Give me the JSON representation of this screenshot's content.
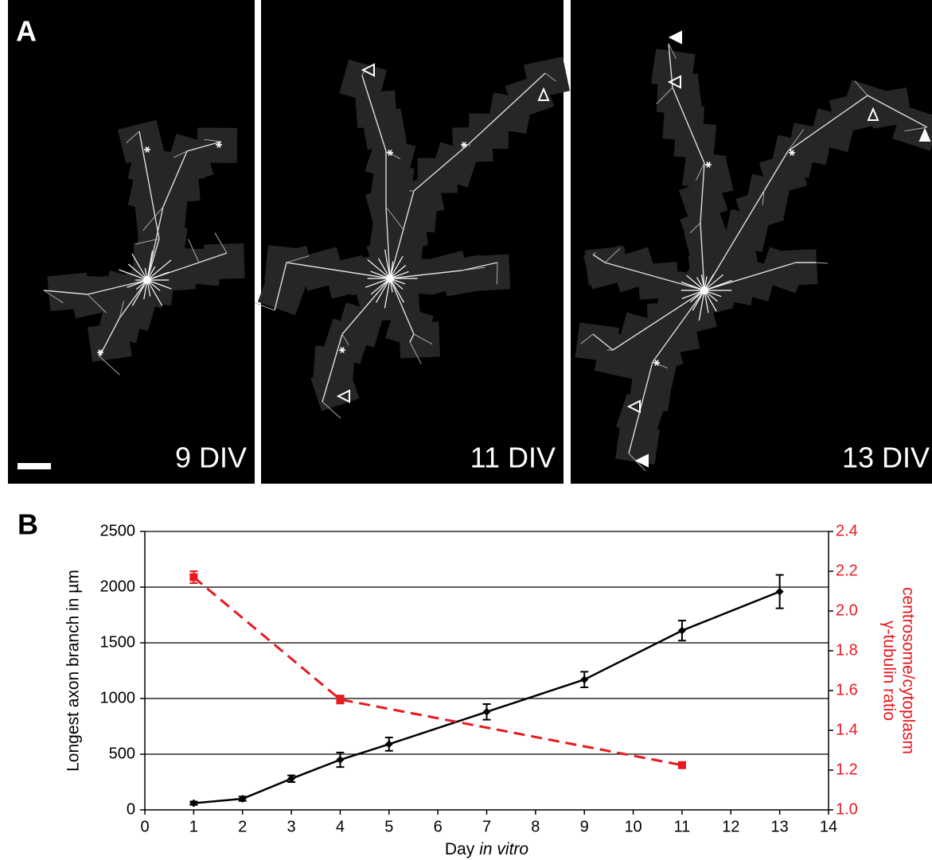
{
  "panel_a": {
    "label": "A",
    "images": [
      {
        "label": "9 DIV"
      },
      {
        "label": "11 DIV"
      },
      {
        "label": "13 DIV"
      }
    ]
  },
  "chart_data": {
    "type": "line",
    "panel_label": "B",
    "ylabel": "Longest axon branch in µm",
    "xlabel": {
      "text": "Day",
      "italic": "in vitro"
    },
    "y2label": [
      "γ-tubulin  ratio",
      "centrosome/cytoplasm"
    ],
    "xlim": [
      0,
      14
    ],
    "xticks": [
      0,
      1,
      2,
      3,
      4,
      5,
      6,
      7,
      8,
      9,
      10,
      11,
      12,
      13,
      14
    ],
    "ylim": [
      0,
      2500
    ],
    "yticks": [
      0,
      500,
      1000,
      1500,
      2000,
      2500
    ],
    "y2lim": [
      1.0,
      2.4
    ],
    "y2ticks": [
      {
        "value": 1,
        "label": "1.0"
      },
      1.2,
      1.4,
      1.6,
      1.8,
      {
        "value": 2,
        "label": "2.0"
      },
      2.2,
      2.4
    ],
    "grid": true,
    "series": [
      {
        "color": "#000000",
        "marker": "diamond",
        "dashed": false,
        "x": [
          1,
          2,
          3,
          4,
          5,
          7,
          9,
          11,
          13
        ],
        "values": [
          60,
          100,
          280,
          450,
          590,
          880,
          1170,
          1610,
          1960
        ],
        "errors": [
          15,
          20,
          30,
          65,
          60,
          70,
          70,
          90,
          150
        ]
      },
      {
        "color": "#e8191f",
        "marker": "square",
        "dashed": true,
        "axis": "y2",
        "x": [
          1,
          4,
          11
        ],
        "values": [
          2.17,
          1.555,
          1.225
        ],
        "errors": [
          0.03,
          0.02,
          0.01
        ]
      }
    ]
  }
}
